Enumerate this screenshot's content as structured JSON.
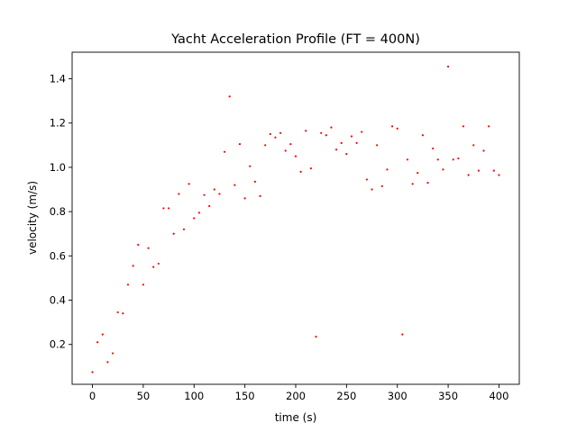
{
  "chart_data": {
    "type": "scatter",
    "title": "Yacht Acceleration Profile (FT = 400N)",
    "xlabel": "time (s)",
    "ylabel": "velocity (m/s)",
    "xlim": [
      -20,
      420
    ],
    "ylim": [
      0.02,
      1.52
    ],
    "xticks": [
      0,
      50,
      100,
      150,
      200,
      250,
      300,
      350,
      400
    ],
    "yticks": [
      0.2,
      0.4,
      0.6,
      0.8,
      1.0,
      1.2,
      1.4
    ],
    "ytick_labels": [
      "0.2",
      "0.4",
      "0.6",
      "0.8",
      "1.0",
      "1.2",
      "1.4"
    ],
    "grid": false,
    "marker_color": "#ff0000",
    "series": [
      {
        "x": [
          0,
          5,
          10,
          15,
          20,
          25,
          30,
          35,
          40,
          45,
          50,
          55,
          60,
          65,
          70,
          75,
          80,
          85,
          90,
          95,
          100,
          105,
          110,
          115,
          120,
          125,
          130,
          135,
          140,
          145,
          150,
          155,
          160,
          165,
          170,
          175,
          180,
          185,
          190,
          195,
          200,
          205,
          210,
          215,
          220,
          225,
          230,
          235,
          240,
          245,
          250,
          255,
          260,
          265,
          270,
          275,
          280,
          285,
          290,
          295,
          300,
          305,
          310,
          315,
          320,
          325,
          330,
          335,
          340,
          345,
          350,
          355,
          360,
          365,
          370,
          375,
          380,
          385,
          390,
          395,
          400
        ],
        "y": [
          0.075,
          0.21,
          0.245,
          0.12,
          0.16,
          0.345,
          0.34,
          0.47,
          0.555,
          0.65,
          0.47,
          0.635,
          0.55,
          0.565,
          0.815,
          0.815,
          0.7,
          0.88,
          0.72,
          0.925,
          0.77,
          0.795,
          0.875,
          0.825,
          0.9,
          0.88,
          1.07,
          1.32,
          0.92,
          1.105,
          0.86,
          1.005,
          0.935,
          0.87,
          1.1,
          1.15,
          1.135,
          1.155,
          1.075,
          1.105,
          1.05,
          0.98,
          1.165,
          0.995,
          0.235,
          1.155,
          1.145,
          1.18,
          1.08,
          1.11,
          1.06,
          1.14,
          1.11,
          1.16,
          0.945,
          0.9,
          1.1,
          0.915,
          0.99,
          1.185,
          1.175,
          0.245,
          1.035,
          0.925,
          0.975,
          1.145,
          0.93,
          1.085,
          1.035,
          0.99,
          1.455,
          1.035,
          1.04,
          1.185,
          0.965,
          1.1,
          0.985,
          1.075,
          1.185,
          0.985,
          0.965
        ]
      }
    ]
  }
}
